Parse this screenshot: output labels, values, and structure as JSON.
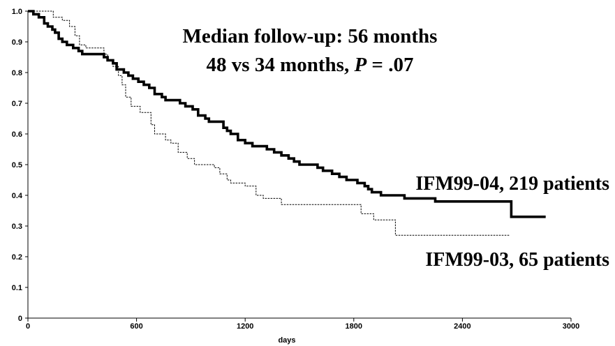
{
  "chart_data": {
    "type": "line",
    "step": true,
    "xlabel": "days",
    "ylabel": "",
    "xlim": [
      0,
      3000
    ],
    "ylim": [
      0,
      1.0
    ],
    "x_ticks": [
      "0",
      "600",
      "1200",
      "1800",
      "2400",
      "3000"
    ],
    "x_tick_values": [
      0,
      600,
      1200,
      1800,
      2400,
      3000
    ],
    "y_ticks": [
      "0",
      "0.1",
      "0.2",
      "0.3",
      "0.4",
      "0.5",
      "0.6",
      "0.7",
      "0.8",
      "0.9",
      "1.0"
    ],
    "y_tick_values": [
      0,
      0.1,
      0.2,
      0.3,
      0.4,
      0.5,
      0.6,
      0.7,
      0.8,
      0.9,
      1.0
    ],
    "grid": false,
    "annotations": {
      "line1": "Median follow-up: 56 months",
      "line2_prefix": "48 vs 34 months, ",
      "line2_p": "P",
      "line2_suffix": " = .07"
    },
    "series": [
      {
        "name": "IFM99-04, 219 patients",
        "style": "solid-thick",
        "points": [
          [
            0,
            1.0
          ],
          [
            30,
            0.99
          ],
          [
            60,
            0.98
          ],
          [
            90,
            0.96
          ],
          [
            110,
            0.95
          ],
          [
            135,
            0.94
          ],
          [
            150,
            0.93
          ],
          [
            170,
            0.91
          ],
          [
            190,
            0.9
          ],
          [
            215,
            0.89
          ],
          [
            250,
            0.88
          ],
          [
            280,
            0.87
          ],
          [
            300,
            0.86
          ],
          [
            420,
            0.85
          ],
          [
            440,
            0.84
          ],
          [
            470,
            0.83
          ],
          [
            490,
            0.81
          ],
          [
            530,
            0.8
          ],
          [
            555,
            0.79
          ],
          [
            580,
            0.78
          ],
          [
            610,
            0.77
          ],
          [
            640,
            0.76
          ],
          [
            670,
            0.75
          ],
          [
            700,
            0.73
          ],
          [
            740,
            0.72
          ],
          [
            760,
            0.71
          ],
          [
            840,
            0.7
          ],
          [
            870,
            0.69
          ],
          [
            910,
            0.68
          ],
          [
            940,
            0.66
          ],
          [
            980,
            0.65
          ],
          [
            1000,
            0.64
          ],
          [
            1080,
            0.62
          ],
          [
            1100,
            0.61
          ],
          [
            1120,
            0.6
          ],
          [
            1160,
            0.58
          ],
          [
            1200,
            0.57
          ],
          [
            1240,
            0.56
          ],
          [
            1320,
            0.55
          ],
          [
            1360,
            0.54
          ],
          [
            1400,
            0.53
          ],
          [
            1440,
            0.52
          ],
          [
            1470,
            0.51
          ],
          [
            1500,
            0.5
          ],
          [
            1600,
            0.49
          ],
          [
            1630,
            0.48
          ],
          [
            1680,
            0.47
          ],
          [
            1720,
            0.46
          ],
          [
            1760,
            0.45
          ],
          [
            1820,
            0.44
          ],
          [
            1860,
            0.43
          ],
          [
            1880,
            0.42
          ],
          [
            1900,
            0.41
          ],
          [
            1950,
            0.4
          ],
          [
            2080,
            0.39
          ],
          [
            2250,
            0.38
          ],
          [
            2670,
            0.33
          ],
          [
            2860,
            0.33
          ]
        ]
      },
      {
        "name": "IFM99-03, 65 patients",
        "style": "dashed-thin",
        "points": [
          [
            0,
            1.0
          ],
          [
            140,
            0.98
          ],
          [
            190,
            0.97
          ],
          [
            230,
            0.95
          ],
          [
            260,
            0.92
          ],
          [
            285,
            0.89
          ],
          [
            320,
            0.88
          ],
          [
            420,
            0.86
          ],
          [
            440,
            0.84
          ],
          [
            470,
            0.82
          ],
          [
            500,
            0.79
          ],
          [
            520,
            0.76
          ],
          [
            540,
            0.72
          ],
          [
            570,
            0.69
          ],
          [
            620,
            0.67
          ],
          [
            680,
            0.63
          ],
          [
            700,
            0.6
          ],
          [
            760,
            0.58
          ],
          [
            790,
            0.57
          ],
          [
            830,
            0.54
          ],
          [
            880,
            0.52
          ],
          [
            920,
            0.5
          ],
          [
            1030,
            0.49
          ],
          [
            1060,
            0.47
          ],
          [
            1100,
            0.45
          ],
          [
            1120,
            0.44
          ],
          [
            1200,
            0.43
          ],
          [
            1260,
            0.4
          ],
          [
            1300,
            0.39
          ],
          [
            1400,
            0.37
          ],
          [
            1840,
            0.34
          ],
          [
            1910,
            0.32
          ],
          [
            2030,
            0.27
          ],
          [
            2660,
            0.27
          ]
        ]
      }
    ]
  }
}
